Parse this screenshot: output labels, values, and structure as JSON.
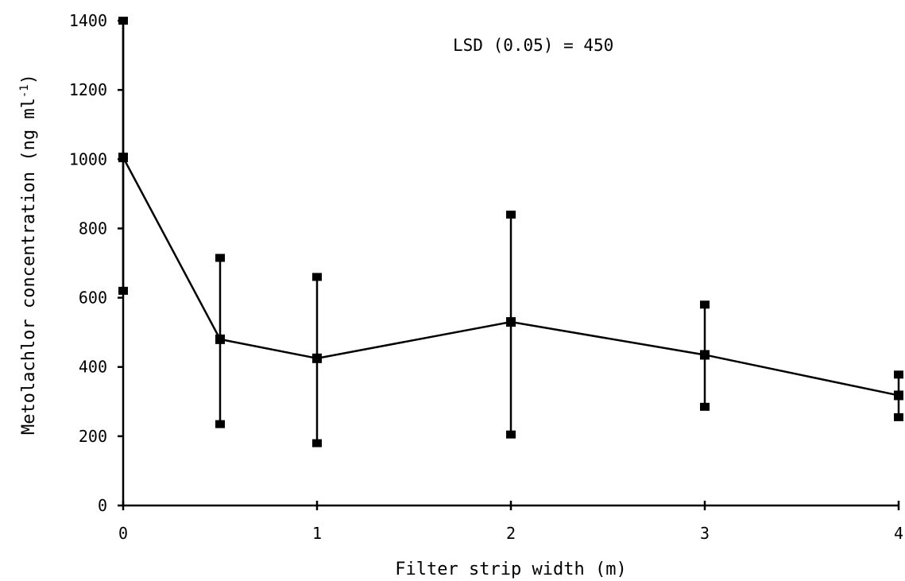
{
  "chart_data": {
    "type": "line",
    "title": "",
    "xlabel": "Filter strip width (m)",
    "ylabel": "Metolachlor concentration (ng ml",
    "ylabel_sup": "-1",
    "ylabel_close": ")",
    "xlim": [
      0,
      4
    ],
    "ylim": [
      0,
      1400
    ],
    "x_ticks": [
      0,
      1,
      2,
      3,
      4
    ],
    "y_ticks": [
      0,
      200,
      400,
      600,
      800,
      1000,
      1200,
      1400
    ],
    "x_tick_labels": [
      "0",
      "1",
      "2",
      "3",
      "4"
    ],
    "y_tick_labels": [
      "0",
      "200",
      "400",
      "600",
      "800",
      "1000",
      "1200",
      "1400"
    ],
    "grid": false,
    "legend": "none",
    "annotation": "LSD (0.05) = 450",
    "series": [
      {
        "x": [
          0,
          0.5,
          1,
          2,
          3,
          4
        ],
        "y": [
          1005,
          480,
          425,
          530,
          435,
          318
        ],
        "err_low": [
          620,
          235,
          180,
          205,
          285,
          255
        ],
        "err_high": [
          1400,
          715,
          660,
          840,
          580,
          378
        ]
      }
    ]
  }
}
